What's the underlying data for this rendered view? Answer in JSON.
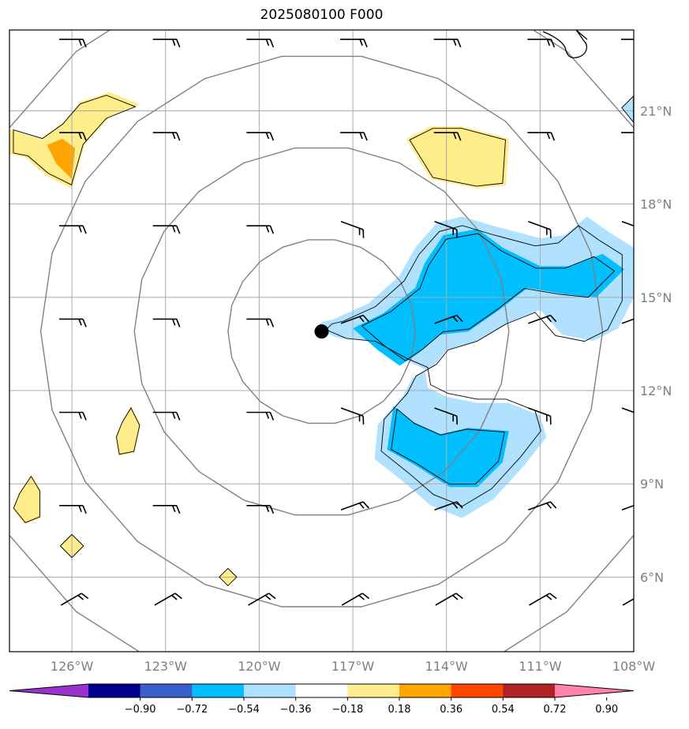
{
  "chart_data": {
    "type": "map-contour",
    "title": "2025080100 F000",
    "lon_range": [
      -128,
      -108
    ],
    "lat_range": [
      3.6,
      23.6
    ],
    "lon_ticks": [
      -126,
      -123,
      -120,
      -117,
      -114,
      -111,
      -108
    ],
    "lon_tick_labels": [
      "126°W",
      "123°W",
      "120°W",
      "117°W",
      "114°W",
      "111°W",
      "108°W"
    ],
    "lat_ticks": [
      6,
      9,
      12,
      15,
      18,
      21
    ],
    "lat_tick_labels": [
      "6°N",
      "9°N",
      "12°N",
      "15°N",
      "18°N",
      "21°N"
    ],
    "grid": true,
    "center": {
      "lon": -118,
      "lat": 13.9
    },
    "range_rings_deg": [
      3,
      6,
      9,
      12
    ],
    "colorbar": {
      "orientation": "horizontal",
      "extend": "both",
      "levels": [
        -0.9,
        -0.72,
        -0.54,
        -0.36,
        -0.18,
        0.18,
        0.36,
        0.54,
        0.72,
        0.9
      ],
      "tick_labels": [
        "−0.90",
        "−0.72",
        "−0.54",
        "−0.36",
        "−0.18",
        "0.18",
        "0.36",
        "0.54",
        "0.72",
        "0.90"
      ],
      "colors": [
        "#9a32cd",
        "#00008b",
        "#3a5fcd",
        "#00bfff",
        "#b0e2ff",
        "#ffffff",
        "#ffec8b",
        "#ffa500",
        "#ff4500",
        "#b22222",
        "#ff82ab"
      ]
    },
    "filled_regions": [
      {
        "value_band": [
          -0.36,
          -0.18
        ],
        "color": "#b0e2ff",
        "points": [
          [
            -118.2,
            14.0
          ],
          [
            -118.0,
            14.2
          ],
          [
            -117.6,
            14.3
          ],
          [
            -116.5,
            14.8
          ],
          [
            -115.5,
            15.7
          ],
          [
            -115.0,
            16.6
          ],
          [
            -114.3,
            17.4
          ],
          [
            -113.5,
            17.6
          ],
          [
            -112.5,
            17.3
          ],
          [
            -111.0,
            16.9
          ],
          [
            -110.2,
            17.0
          ],
          [
            -109.5,
            17.6
          ],
          [
            -108.8,
            17.1
          ],
          [
            -108.0,
            16.6
          ],
          [
            -108.0,
            15.0
          ],
          [
            -108.5,
            14.0
          ],
          [
            -109.3,
            13.6
          ],
          [
            -110.3,
            13.8
          ],
          [
            -111.0,
            14.6
          ],
          [
            -112.0,
            14.2
          ],
          [
            -113.0,
            13.6
          ],
          [
            -114.0,
            13.3
          ],
          [
            -114.4,
            12.8
          ],
          [
            -115.1,
            12.4
          ],
          [
            -115.4,
            11.8
          ],
          [
            -116.2,
            10.9
          ],
          [
            -116.3,
            9.8
          ],
          [
            -115.3,
            9.0
          ],
          [
            -114.5,
            8.3
          ],
          [
            -113.5,
            7.9
          ],
          [
            -112.5,
            8.5
          ],
          [
            -111.5,
            9.6
          ],
          [
            -110.8,
            10.5
          ],
          [
            -111.0,
            11.2
          ],
          [
            -112.0,
            11.6
          ],
          [
            -113.0,
            11.6
          ],
          [
            -114.0,
            11.8
          ],
          [
            -114.6,
            12.1
          ],
          [
            -114.7,
            12.7
          ],
          [
            -115.4,
            13.0
          ],
          [
            -116.5,
            13.6
          ],
          [
            -117.5,
            13.7
          ]
        ]
      },
      {
        "value_band": [
          -0.54,
          -0.36
        ],
        "color": "#00bfff",
        "points": [
          [
            -117.0,
            14.0
          ],
          [
            -116.0,
            14.5
          ],
          [
            -115.0,
            15.3
          ],
          [
            -114.7,
            16.1
          ],
          [
            -114.1,
            17.0
          ],
          [
            -113.0,
            17.2
          ],
          [
            -112.2,
            16.6
          ],
          [
            -111.0,
            16.0
          ],
          [
            -110.0,
            16.0
          ],
          [
            -109.0,
            16.4
          ],
          [
            -108.3,
            15.9
          ],
          [
            -109.2,
            15.0
          ],
          [
            -110.2,
            15.1
          ],
          [
            -111.4,
            15.3
          ],
          [
            -112.3,
            14.6
          ],
          [
            -113.3,
            13.9
          ],
          [
            -114.2,
            13.8
          ],
          [
            -114.9,
            13.2
          ],
          [
            -115.5,
            12.8
          ],
          [
            -116.2,
            13.3
          ]
        ]
      },
      {
        "value_band": [
          -0.54,
          -0.36
        ],
        "color": "#00bfff",
        "points": [
          [
            -115.7,
            11.5
          ],
          [
            -115.1,
            11.0
          ],
          [
            -114.2,
            10.6
          ],
          [
            -113.3,
            10.8
          ],
          [
            -112.0,
            10.7
          ],
          [
            -112.2,
            9.7
          ],
          [
            -113.0,
            8.9
          ],
          [
            -113.9,
            8.9
          ],
          [
            -115.0,
            9.6
          ],
          [
            -115.9,
            10.1
          ]
        ]
      },
      {
        "value_band": [
          0.18,
          0.36
        ],
        "color": "#ffec8b",
        "points": [
          [
            -128,
            20.4
          ],
          [
            -127.0,
            20.1
          ],
          [
            -126.3,
            20.6
          ],
          [
            -125.7,
            21.3
          ],
          [
            -124.8,
            21.6
          ],
          [
            -123.8,
            21.2
          ],
          [
            -124.8,
            20.8
          ],
          [
            -125.6,
            19.9
          ],
          [
            -126.0,
            18.5
          ],
          [
            -126.8,
            18.9
          ],
          [
            -127.5,
            19.5
          ],
          [
            -128,
            19.6
          ]
        ]
      },
      {
        "value_band": [
          0.18,
          0.36
        ],
        "color": "#ffec8b",
        "points": [
          [
            -115.3,
            20.1
          ],
          [
            -114.5,
            20.5
          ],
          [
            -113.5,
            20.5
          ],
          [
            -112.0,
            20.1
          ],
          [
            -112.1,
            18.6
          ],
          [
            -113.0,
            18.5
          ],
          [
            -114.5,
            18.8
          ]
        ]
      },
      {
        "value_band": [
          0.18,
          0.36
        ],
        "color": "#ffec8b",
        "points": [
          [
            -124.4,
            11.0
          ],
          [
            -124.1,
            11.5
          ],
          [
            -123.8,
            10.9
          ],
          [
            -124.0,
            10.0
          ],
          [
            -124.5,
            9.9
          ],
          [
            -124.6,
            10.5
          ]
        ]
      },
      {
        "value_band": [
          0.18,
          0.36
        ],
        "color": "#ffec8b",
        "points": [
          [
            -127.7,
            8.7
          ],
          [
            -127.3,
            9.3
          ],
          [
            -127.0,
            8.8
          ],
          [
            -127.0,
            7.9
          ],
          [
            -127.5,
            7.7
          ],
          [
            -127.9,
            8.2
          ]
        ]
      },
      {
        "value_band": [
          0.18,
          0.36
        ],
        "color": "#ffec8b",
        "points": [
          [
            -126.4,
            7.0
          ],
          [
            -126.0,
            7.4
          ],
          [
            -125.6,
            7.0
          ],
          [
            -126.0,
            6.6
          ]
        ]
      },
      {
        "value_band": [
          0.18,
          0.36
        ],
        "color": "#ffec8b",
        "points": [
          [
            -121.3,
            6.0
          ],
          [
            -121.0,
            6.3
          ],
          [
            -120.7,
            6.0
          ],
          [
            -121.0,
            5.7
          ]
        ]
      },
      {
        "value_band": [
          -0.36,
          -0.18
        ],
        "color": "#b0e2ff",
        "points": [
          [
            -108.4,
            21.1
          ],
          [
            -108.0,
            21.5
          ],
          [
            -108.0,
            20.6
          ]
        ]
      },
      {
        "value_band": [
          0.36,
          0.54
        ],
        "color": "#ffa500",
        "points": [
          [
            -126.8,
            19.9
          ],
          [
            -126.3,
            20.1
          ],
          [
            -125.9,
            19.8
          ],
          [
            -126.0,
            18.8
          ],
          [
            -126.5,
            19.3
          ]
        ]
      }
    ]
  }
}
